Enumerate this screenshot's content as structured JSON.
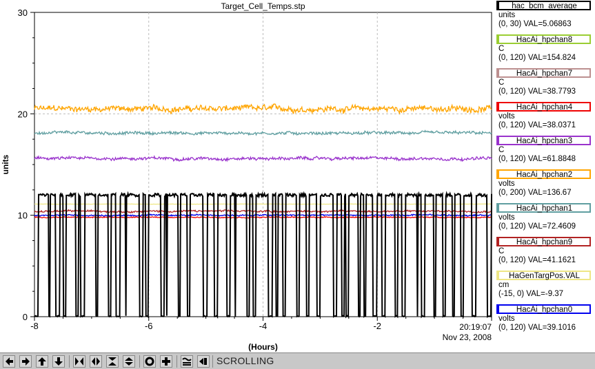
{
  "colors": {
    "hac_bcm_average": "#000000",
    "HacAi_hpchan8": "#9acd32",
    "HacAi_hpchan7": "#bc8f8f",
    "HacAi_hpchan4": "#ee0000",
    "HacAi_hpchan3": "#9932cc",
    "HacAi_hpchan2": "#ffa500",
    "HacAi_hpchan1": "#5f9ea0",
    "HacAi_hpchan9": "#b22222",
    "HaGenTargPos.VAL": "#eee685",
    "HacAi_hpchan0": "#0000ee"
  },
  "chart_data": {
    "type": "line",
    "title": "Target_Cell_Temps.stp",
    "xlabel": "(Hours)",
    "ylabel": "units",
    "xlim": [
      -8,
      0
    ],
    "ylim": [
      0,
      30
    ],
    "x_ticks": [
      "-8",
      "-6",
      "-4",
      "-2"
    ],
    "y_ticks": [
      "0",
      "10",
      "20",
      "30"
    ],
    "grid": true,
    "timestamp_time": "20:19:07",
    "timestamp_date": "Nov 23, 2008",
    "legend_placement": "right",
    "series": [
      {
        "name": "HacAi_hpchan2",
        "color_key": "HacAi_hpchan2",
        "level": 20.5,
        "noise": 0.5
      },
      {
        "name": "HacAi_hpchan1",
        "color_key": "HacAi_hpchan1",
        "level": 18.1,
        "noise": 0.25
      },
      {
        "name": "HacAi_hpchan3",
        "color_key": "HacAi_hpchan3",
        "level": 15.6,
        "noise": 0.25
      },
      {
        "name": "HaGenTargPos.VAL",
        "color_key": "HaGenTargPos.VAL",
        "level": 11.1,
        "noise": 0.02
      },
      {
        "name": "HacAi_hpchan9",
        "color_key": "HacAi_hpchan9",
        "level": 10.4,
        "noise": 0.15
      },
      {
        "name": "HacAi_hpchan0",
        "color_key": "HacAi_hpchan0",
        "level": 10.0,
        "noise": 0.12
      },
      {
        "name": "HacAi_hpchan4",
        "color_key": "HacAi_hpchan4",
        "level": 9.8,
        "noise": 0.08
      },
      {
        "name": "hac_bcm_average",
        "color_key": "hac_bcm_average",
        "level": 12.0,
        "low": 0.0,
        "kind": "square-toggle"
      }
    ]
  },
  "legend": [
    {
      "name": "hac_bcm_average",
      "unit": "units",
      "range": "(0, 30) VAL=5.06863"
    },
    {
      "name": "HacAi_hpchan8",
      "unit": "C",
      "range": "(0, 120) VAL=154.824"
    },
    {
      "name": "HacAi_hpchan7",
      "unit": "C",
      "range": "(0, 120) VAL=38.7793"
    },
    {
      "name": "HacAi_hpchan4",
      "unit": "volts",
      "range": "(0, 120) VAL=38.0371"
    },
    {
      "name": "HacAi_hpchan3",
      "unit": "C",
      "range": "(0, 120) VAL=61.8848"
    },
    {
      "name": "HacAi_hpchan2",
      "unit": "volts",
      "range": "(0, 200) VAL=136.67"
    },
    {
      "name": "HacAi_hpchan1",
      "unit": "volts",
      "range": "(0, 120) VAL=72.4609"
    },
    {
      "name": "HacAi_hpchan9",
      "unit": "C",
      "range": "(0, 120) VAL=41.1621"
    },
    {
      "name": "HaGenTargPos.VAL",
      "unit": "cm",
      "range": "(-15, 0) VAL=-9.37"
    },
    {
      "name": "HacAi_hpchan0",
      "unit": "volts",
      "range": "(0, 120) VAL=39.1016"
    }
  ],
  "toolbar": {
    "status": "SCROLLING",
    "buttons": [
      {
        "icon": "arrow-left-icon"
      },
      {
        "icon": "arrow-right-icon"
      },
      {
        "icon": "arrow-up-icon"
      },
      {
        "icon": "arrow-down-icon"
      },
      {
        "icon": "expand-horizontal-icon"
      },
      {
        "icon": "compress-horizontal-icon"
      },
      {
        "icon": "expand-vertical-icon"
      },
      {
        "icon": "compress-vertical-icon"
      },
      {
        "icon": "circle-icon"
      },
      {
        "icon": "plus-icon"
      },
      {
        "icon": "autoscale-icon"
      },
      {
        "icon": "scroll-to-end-icon"
      }
    ]
  }
}
